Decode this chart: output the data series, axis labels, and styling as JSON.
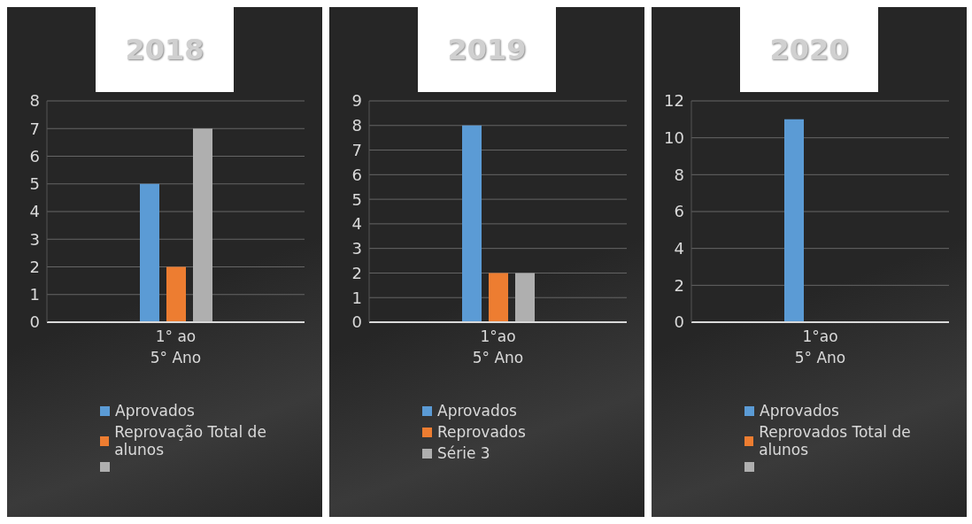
{
  "chart_data": [
    {
      "type": "bar",
      "title": "2018",
      "categories": [
        "1° ao 5° Ano"
      ],
      "series": [
        {
          "name": "Aprovados",
          "color": "#5b9bd5",
          "values": [
            5
          ]
        },
        {
          "name": "Reprovação Total de alunos",
          "color": "#ed7d31",
          "values": [
            2
          ]
        },
        {
          "color": "#afafaf",
          "values": [
            7
          ]
        }
      ],
      "ylim": [
        0,
        8
      ],
      "yticks": [
        0,
        1,
        2,
        3,
        4,
        5,
        6,
        7,
        8
      ],
      "grid": "y",
      "legend": "bottom"
    },
    {
      "type": "bar",
      "title": "2019",
      "categories": [
        "1°ao 5° Ano"
      ],
      "series": [
        {
          "name": "Aprovados",
          "color": "#5b9bd5",
          "values": [
            8
          ]
        },
        {
          "name": "Reprovados",
          "color": "#ed7d31",
          "values": [
            2
          ]
        },
        {
          "name": "Série 3",
          "color": "#afafaf",
          "values": [
            2
          ]
        }
      ],
      "ylim": [
        0,
        9
      ],
      "yticks": [
        0,
        1,
        2,
        3,
        4,
        5,
        6,
        7,
        8,
        9
      ],
      "grid": "y",
      "legend": "bottom"
    },
    {
      "type": "bar",
      "title": "2020",
      "categories": [
        "1°ao 5° Ano"
      ],
      "series": [
        {
          "name": "Aprovados",
          "color": "#5b9bd5",
          "values": [
            11
          ]
        },
        {
          "name": "Reprovados Total de alunos",
          "color": "#ed7d31",
          "values": [
            null
          ]
        },
        {
          "color": "#afafaf",
          "values": [
            null
          ]
        }
      ],
      "ylim": [
        0,
        12
      ],
      "yticks": [
        0,
        2,
        4,
        6,
        8,
        10,
        12
      ],
      "grid": "y",
      "legend": "bottom"
    }
  ]
}
